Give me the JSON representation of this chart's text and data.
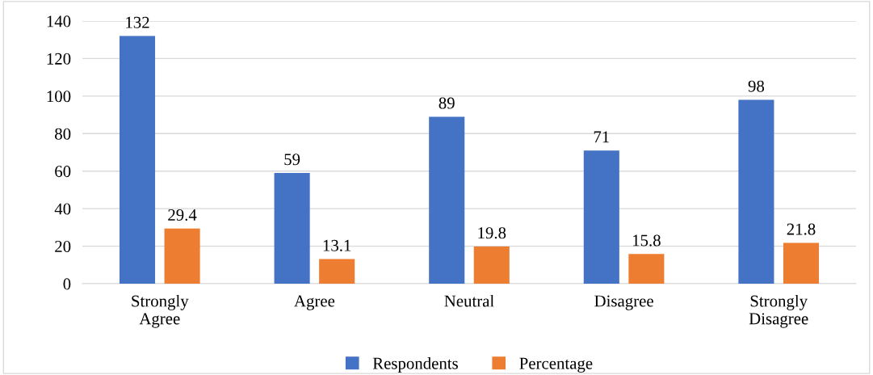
{
  "chart_data": {
    "type": "bar",
    "categories": [
      "Strongly\nAgree",
      "Agree",
      "Neutral",
      "Disagree",
      "Strongly\nDisagree"
    ],
    "series": [
      {
        "name": "Respondents",
        "color": "#4472c4",
        "values": [
          132,
          59,
          89,
          71,
          98
        ]
      },
      {
        "name": "Percentage",
        "color": "#ed7d31",
        "values": [
          29.4,
          13.1,
          19.8,
          15.8,
          21.8
        ]
      }
    ],
    "ylim": [
      0,
      140
    ],
    "yticks": [
      0,
      20,
      40,
      60,
      80,
      100,
      120,
      140
    ],
    "grid": "y",
    "legend": "bottom",
    "data_labels": true
  }
}
